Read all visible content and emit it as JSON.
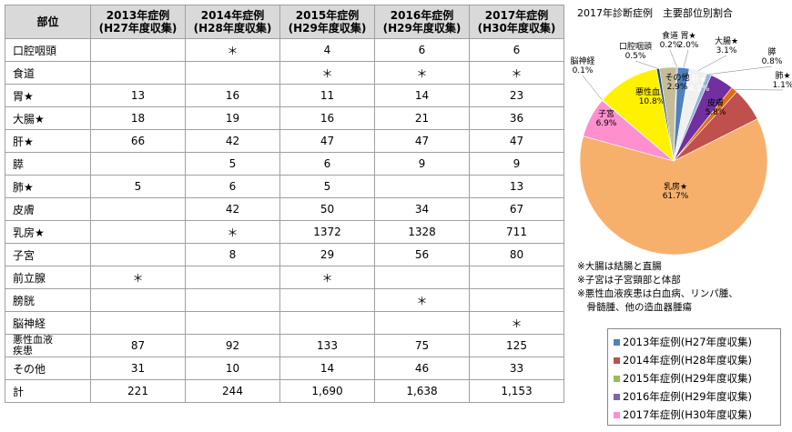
{
  "table": {
    "header": [
      "部位",
      "2013年症例\n(H27年度収集)",
      "2014年症例\n(H28年度収集)",
      "2015年症例\n(H29年度収集)",
      "2016年症例\n(H29年度収集)",
      "2017年症例\n(H30年度収集)"
    ],
    "rows": [
      {
        "site": "口腔咽頭",
        "values": [
          "",
          "＊",
          "4",
          "6",
          "6"
        ]
      },
      {
        "site": "食道",
        "values": [
          "",
          "",
          "＊",
          "＊",
          "＊"
        ]
      },
      {
        "site": "胃★",
        "values": [
          "13",
          "16",
          "11",
          "14",
          "23"
        ]
      },
      {
        "site": "大腸★",
        "values": [
          "18",
          "19",
          "16",
          "21",
          "36"
        ]
      },
      {
        "site": "肝★",
        "values": [
          "66",
          "42",
          "47",
          "47",
          "47"
        ]
      },
      {
        "site": "膵",
        "values": [
          "",
          "5",
          "6",
          "9",
          "9"
        ]
      },
      {
        "site": "肺★",
        "values": [
          "5",
          "6",
          "5",
          "",
          "13"
        ]
      },
      {
        "site": "皮膚",
        "values": [
          "",
          "42",
          "50",
          "34",
          "67"
        ]
      },
      {
        "site": "乳房★",
        "values": [
          "",
          "＊",
          "1372",
          "1328",
          "711"
        ]
      },
      {
        "site": "子宮",
        "values": [
          "",
          "8",
          "29",
          "56",
          "80"
        ]
      },
      {
        "site": "前立腺",
        "values": [
          "＊",
          "",
          "＊",
          "",
          ""
        ]
      },
      {
        "site": "膀胱",
        "values": [
          "",
          "",
          "",
          "＊",
          ""
        ]
      },
      {
        "site": "脳神経",
        "values": [
          "",
          "",
          "",
          "",
          "＊"
        ]
      },
      {
        "site": "悪性血液\n疾患",
        "values": [
          "87",
          "92",
          "133",
          "75",
          "125"
        ]
      },
      {
        "site": "その他",
        "values": [
          "31",
          "10",
          "14",
          "46",
          "33"
        ]
      },
      {
        "site": "計",
        "values": [
          "221",
          "244",
          "1,690",
          "1,638",
          "1,153"
        ]
      }
    ]
  },
  "pie_title": "2017年診断症例　主要部位別割合",
  "chart_data": {
    "type": "pie",
    "title": "2017年診断症例　主要部位別割合",
    "slices": [
      {
        "label": "食道",
        "value": 0.2,
        "color": "#9e9e9e"
      },
      {
        "label": "胃★",
        "value": 2.0,
        "color": "#4f81bd"
      },
      {
        "label": "大腸★",
        "value": 3.1,
        "color": "#f0f0f0"
      },
      {
        "label": "膵",
        "value": 0.8,
        "color": "#95b3d7"
      },
      {
        "label": "肝★",
        "value": 4.1,
        "color": "#7030a0"
      },
      {
        "label": "肺★",
        "value": 1.1,
        "color": "#e46c0a"
      },
      {
        "label": "皮膚",
        "value": 5.8,
        "color": "#c0504d"
      },
      {
        "label": "乳房★",
        "value": 61.7,
        "color": "#f7b06c"
      },
      {
        "label": "子宮",
        "value": 6.9,
        "color": "#ff8fcf"
      },
      {
        "label": "脳神経",
        "value": 0.1,
        "color": "#4bacc6"
      },
      {
        "label": "悪性血液",
        "value": 10.8,
        "color": "#fff100"
      },
      {
        "label": "口腔咽頭",
        "value": 0.5,
        "color": "#1f497d"
      },
      {
        "label": "その他",
        "value": 2.9,
        "color": "#c4bd97"
      }
    ]
  },
  "notes": [
    "※大腸は結腸と直腸",
    "※子宮は子宮頸部と体部",
    "※悪性血液疾患は白血病、リンパ腫、",
    "　骨髄腫、他の造血器腫瘍"
  ],
  "legend": [
    {
      "label": "2013年症例(H27年度収集)",
      "color": "#4f81bd"
    },
    {
      "label": "2014年症例(H28年度収集)",
      "color": "#c0504d"
    },
    {
      "label": "2015年症例(H29年度収集)",
      "color": "#9bbb59"
    },
    {
      "label": "2016年症例(H29年度収集)",
      "color": "#8064a2"
    },
    {
      "label": "2017年症例(H30年度収集)",
      "color": "#ff8fcf"
    }
  ]
}
